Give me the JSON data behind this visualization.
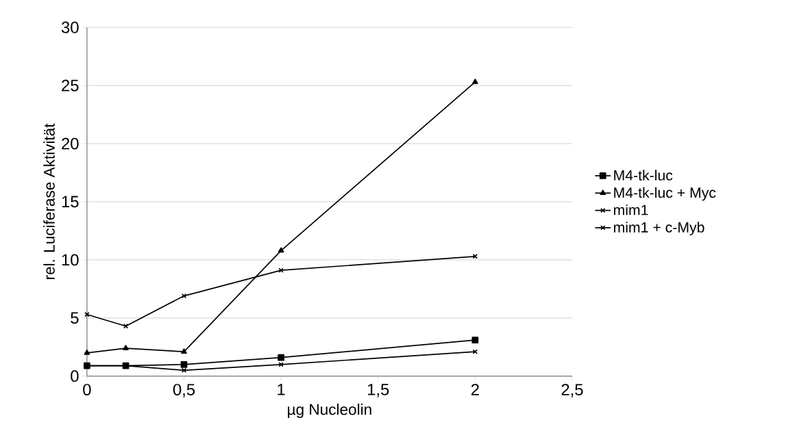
{
  "chart_data": {
    "type": "line",
    "xlabel": "µg Nucleolin",
    "ylabel": "rel. Luciferase Aktivität",
    "x": [
      0,
      0.2,
      0.5,
      1,
      2
    ],
    "series": [
      {
        "name": "M4-tk-luc",
        "color": "#000000",
        "marker": "square",
        "values": [
          0.9,
          0.9,
          1.0,
          1.6,
          3.1
        ]
      },
      {
        "name": "M4-tk-luc + Myc",
        "color": "#000000",
        "marker": "triangle",
        "values": [
          2.0,
          2.4,
          2.1,
          10.8,
          25.3
        ]
      },
      {
        "name": "mim1",
        "color": "#000000",
        "marker": "cross",
        "values": [
          0.9,
          0.9,
          0.5,
          1.0,
          2.1
        ]
      },
      {
        "name": "mim1 + c-Myb",
        "color": "#000000",
        "marker": "cross",
        "values": [
          5.3,
          4.3,
          6.9,
          9.1,
          10.3
        ]
      }
    ],
    "xlim": [
      0,
      2.5
    ],
    "ylim": [
      0,
      30
    ],
    "xticks": [
      0,
      {
        "value": 0.5,
        "label": "0,5"
      },
      1,
      {
        "value": 1.5,
        "label": "1,5"
      },
      2,
      {
        "value": 2.5,
        "label": "2,5"
      }
    ],
    "yticks": [
      0,
      5,
      10,
      15,
      20,
      25,
      30
    ],
    "grid": "y",
    "legend": "right",
    "line_style": "solid"
  }
}
